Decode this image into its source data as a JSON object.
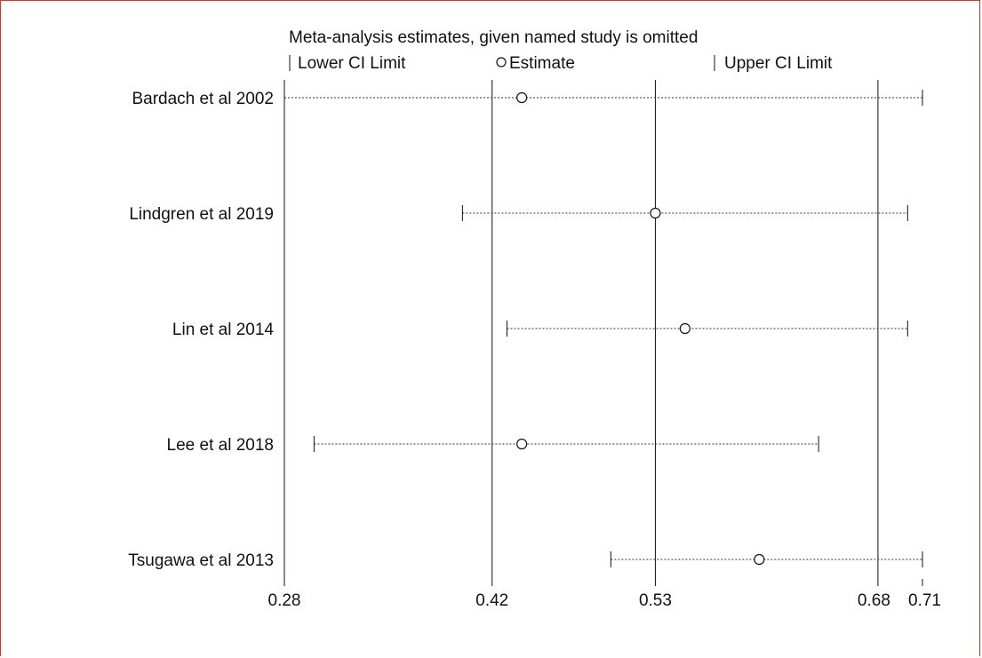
{
  "chart_data": {
    "type": "scatter",
    "title": "Meta-analysis estimates, given named study is omitted",
    "legend": {
      "lower": "Lower CI Limit",
      "estimate": "Estimate",
      "upper": "Upper CI Limit"
    },
    "xlim": [
      0.28,
      0.71
    ],
    "x_ticks": [
      "0.28",
      "0.42",
      "0.53",
      "0.68",
      "0.71"
    ],
    "reference_lines": [
      0.42,
      0.53,
      0.68
    ],
    "studies": [
      {
        "name": "Bardach et al 2002",
        "lower": 0.28,
        "estimate": 0.44,
        "upper": 0.71
      },
      {
        "name": "Lindgren et al 2019",
        "lower": 0.4,
        "estimate": 0.53,
        "upper": 0.7
      },
      {
        "name": "Lin et al 2014",
        "lower": 0.43,
        "estimate": 0.55,
        "upper": 0.7
      },
      {
        "name": "Lee et al 2018",
        "lower": 0.3,
        "estimate": 0.44,
        "upper": 0.64
      },
      {
        "name": "Tsugawa et al 2013",
        "lower": 0.5,
        "estimate": 0.6,
        "upper": 0.71
      }
    ]
  }
}
